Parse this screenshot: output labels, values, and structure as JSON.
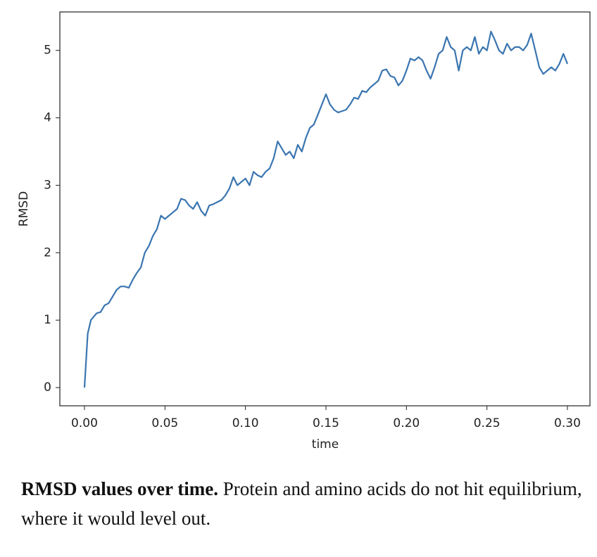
{
  "chart_data": {
    "type": "line",
    "xlabel": "time",
    "ylabel": "RMSD",
    "color": "#3a75b0",
    "xlim": [
      -0.0153,
      0.314
    ],
    "ylim": [
      -0.27,
      5.57
    ],
    "xticks": [
      {
        "value": 0,
        "label": "0.00"
      },
      {
        "value": 0.05,
        "label": "0.05"
      },
      {
        "value": 0.1,
        "label": "0.10"
      },
      {
        "value": 0.15,
        "label": "0.15"
      },
      {
        "value": 0.2,
        "label": "0.20"
      },
      {
        "value": 0.25,
        "label": "0.25"
      },
      {
        "value": 0.3,
        "label": "0.30"
      }
    ],
    "yticks": [
      0,
      1,
      2,
      3,
      4,
      5
    ],
    "x": [
      0,
      0.002,
      0.004,
      0.0075,
      0.01,
      0.0125,
      0.015,
      0.0175,
      0.02,
      0.0225,
      0.025,
      0.0275,
      0.03,
      0.0325,
      0.035,
      0.0375,
      0.04,
      0.0425,
      0.045,
      0.0475,
      0.05,
      0.0525,
      0.055,
      0.0575,
      0.06,
      0.0625,
      0.065,
      0.0675,
      0.07,
      0.0725,
      0.075,
      0.0775,
      0.08,
      0.0825,
      0.085,
      0.0875,
      0.09,
      0.0925,
      0.095,
      0.0975,
      0.1,
      0.1025,
      0.105,
      0.1075,
      0.11,
      0.1125,
      0.115,
      0.1175,
      0.12,
      0.1225,
      0.125,
      0.1275,
      0.13,
      0.1325,
      0.135,
      0.1375,
      0.14,
      0.1425,
      0.145,
      0.1475,
      0.15,
      0.1525,
      0.155,
      0.1575,
      0.16,
      0.1625,
      0.165,
      0.1675,
      0.17,
      0.1725,
      0.175,
      0.1775,
      0.18,
      0.1825,
      0.185,
      0.1875,
      0.19,
      0.1925,
      0.195,
      0.1975,
      0.2,
      0.2025,
      0.205,
      0.2075,
      0.21,
      0.2125,
      0.215,
      0.2175,
      0.22,
      0.2225,
      0.225,
      0.2275,
      0.23,
      0.2325,
      0.235,
      0.2375,
      0.24,
      0.2425,
      0.245,
      0.2475,
      0.25,
      0.2525,
      0.255,
      0.2575,
      0.26,
      0.2625,
      0.265,
      0.2675,
      0.27,
      0.2725,
      0.275,
      0.2775,
      0.28,
      0.2825,
      0.285,
      0.2875,
      0.29,
      0.2925,
      0.295,
      0.2975,
      0.3
    ],
    "values": [
      0,
      0.8,
      1.0,
      1.1,
      1.12,
      1.22,
      1.25,
      1.35,
      1.45,
      1.5,
      1.5,
      1.48,
      1.6,
      1.7,
      1.78,
      2.0,
      2.1,
      2.25,
      2.35,
      2.55,
      2.5,
      2.55,
      2.6,
      2.65,
      2.8,
      2.78,
      2.7,
      2.65,
      2.75,
      2.62,
      2.55,
      2.7,
      2.72,
      2.75,
      2.78,
      2.85,
      2.95,
      3.12,
      3.0,
      3.05,
      3.1,
      3.0,
      3.2,
      3.15,
      3.12,
      3.2,
      3.25,
      3.4,
      3.65,
      3.55,
      3.45,
      3.5,
      3.4,
      3.6,
      3.5,
      3.7,
      3.85,
      3.9,
      4.05,
      4.2,
      4.35,
      4.2,
      4.12,
      4.08,
      4.1,
      4.12,
      4.2,
      4.3,
      4.28,
      4.4,
      4.38,
      4.45,
      4.5,
      4.55,
      4.7,
      4.72,
      4.62,
      4.6,
      4.48,
      4.55,
      4.7,
      4.88,
      4.85,
      4.9,
      4.85,
      4.7,
      4.58,
      4.75,
      4.95,
      5.0,
      5.2,
      5.05,
      5.0,
      4.7,
      5.0,
      5.05,
      5.0,
      5.2,
      4.95,
      5.05,
      5.0,
      5.28,
      5.15,
      5.0,
      4.95,
      5.1,
      5.0,
      5.05,
      5.05,
      5.0,
      5.08,
      5.25,
      5.0,
      4.75,
      4.65,
      4.7,
      4.75,
      4.7,
      4.8,
      4.95,
      4.8
    ]
  },
  "caption": {
    "bold": "RMSD values over time.",
    "text": "Protein and amino acids do not hit equilibrium, where it would level out."
  }
}
